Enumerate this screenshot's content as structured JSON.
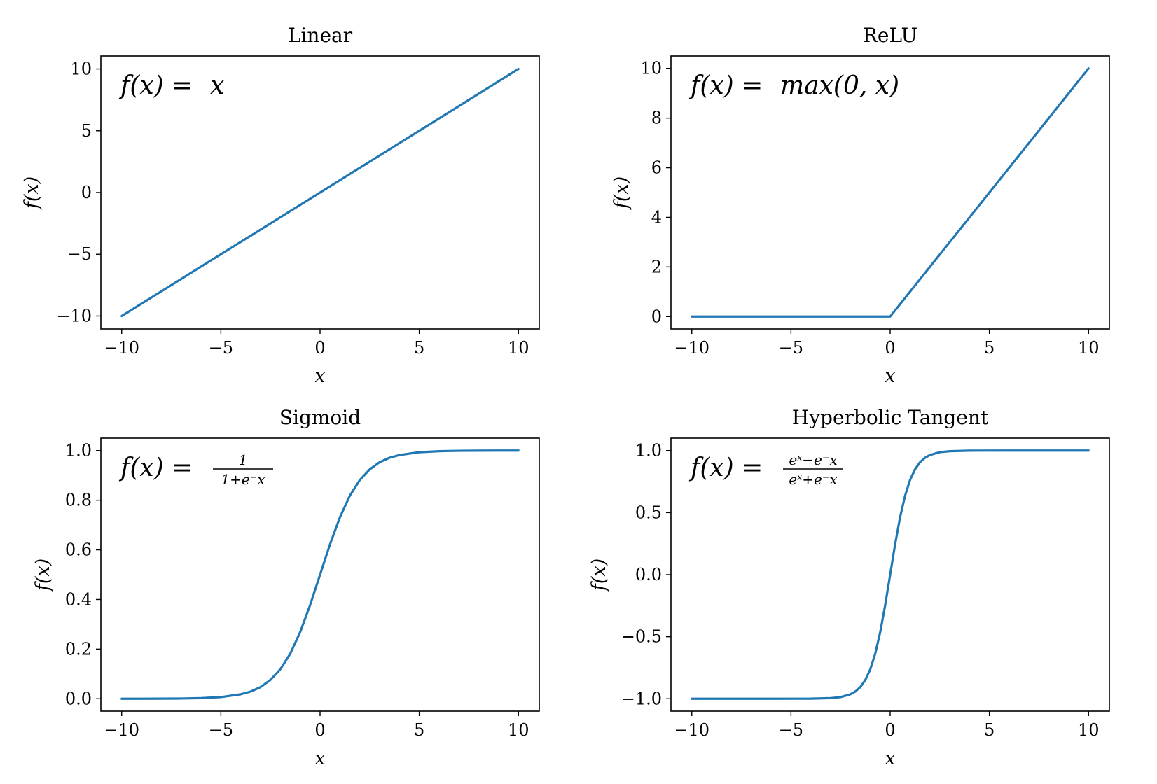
{
  "accent_color": "#1f77b4",
  "chart_data": [
    {
      "type": "line",
      "title": "Linear",
      "xlabel": "x",
      "ylabel": "f(x)",
      "formula": {
        "lhs": "f(x) = ",
        "rhs": "x"
      },
      "xlim": [
        -11.05,
        11.05
      ],
      "ylim": [
        -11.05,
        11.05
      ],
      "xticks": [
        -10,
        -5,
        0,
        5,
        10
      ],
      "xtick_labels": [
        "−10",
        "−5",
        "0",
        "5",
        "10"
      ],
      "yticks": [
        -10,
        -5,
        0,
        5,
        10
      ],
      "ytick_labels": [
        "−10",
        "−5",
        "0",
        "5",
        "10"
      ],
      "series": [
        {
          "x": [
            -10,
            10
          ],
          "y": [
            -10,
            10
          ]
        }
      ]
    },
    {
      "type": "line",
      "title": "ReLU",
      "xlabel": "x",
      "ylabel": "f(x)",
      "formula": {
        "lhs": "f(x) = ",
        "rhs": "max(0, x)"
      },
      "xlim": [
        -11.05,
        11.05
      ],
      "ylim": [
        -0.5,
        10.5
      ],
      "xticks": [
        -10,
        -5,
        0,
        5,
        10
      ],
      "xtick_labels": [
        "−10",
        "−5",
        "0",
        "5",
        "10"
      ],
      "yticks": [
        0,
        2,
        4,
        6,
        8,
        10
      ],
      "ytick_labels": [
        "0",
        "2",
        "4",
        "6",
        "8",
        "10"
      ],
      "series": [
        {
          "x": [
            -10,
            0,
            10
          ],
          "y": [
            0,
            0,
            10
          ]
        }
      ]
    },
    {
      "type": "line",
      "title": "Sigmoid",
      "xlabel": "x",
      "ylabel": "f(x)",
      "formula": {
        "lhs": "f(x) = ",
        "num": "1",
        "den": "1+e⁻x"
      },
      "xlim": [
        -11.05,
        11.05
      ],
      "ylim": [
        -0.05,
        1.05
      ],
      "xticks": [
        -10,
        -5,
        0,
        5,
        10
      ],
      "xtick_labels": [
        "−10",
        "−5",
        "0",
        "5",
        "10"
      ],
      "yticks": [
        0.0,
        0.2,
        0.4,
        0.6,
        0.8,
        1.0
      ],
      "ytick_labels": [
        "0.0",
        "0.2",
        "0.4",
        "0.6",
        "0.8",
        "1.0"
      ],
      "series": [
        {
          "x": [
            -10,
            -9,
            -8,
            -7,
            -6,
            -5,
            -4,
            -3.5,
            -3,
            -2.5,
            -2,
            -1.5,
            -1,
            -0.5,
            0,
            0.5,
            1,
            1.5,
            2,
            2.5,
            3,
            3.5,
            4,
            5,
            6,
            7,
            8,
            9,
            10
          ],
          "y": [
            5e-05,
            0.00012,
            0.00034,
            0.0009,
            0.0025,
            0.0067,
            0.018,
            0.029,
            0.047,
            0.076,
            0.119,
            0.182,
            0.269,
            0.378,
            0.5,
            0.622,
            0.731,
            0.818,
            0.881,
            0.924,
            0.953,
            0.971,
            0.982,
            0.9933,
            0.9975,
            0.9991,
            0.99966,
            0.99988,
            0.99995
          ]
        }
      ]
    },
    {
      "type": "line",
      "title": "Hyperbolic Tangent",
      "xlabel": "x",
      "ylabel": "f(x)",
      "formula": {
        "lhs": "f(x) = ",
        "num": "eˣ−e⁻x",
        "den": "eˣ+e⁻x"
      },
      "xlim": [
        -11.05,
        11.05
      ],
      "ylim": [
        -1.1,
        1.1
      ],
      "xticks": [
        -10,
        -5,
        0,
        5,
        10
      ],
      "xtick_labels": [
        "−10",
        "−5",
        "0",
        "5",
        "10"
      ],
      "yticks": [
        -1.0,
        -0.5,
        0.0,
        0.5,
        1.0
      ],
      "ytick_labels": [
        "−1.0",
        "−0.5",
        "0.0",
        "0.5",
        "1.0"
      ],
      "series": [
        {
          "x": [
            -10,
            -6,
            -4,
            -3,
            -2.5,
            -2,
            -1.75,
            -1.5,
            -1.25,
            -1,
            -0.75,
            -0.5,
            -0.25,
            0,
            0.25,
            0.5,
            0.75,
            1,
            1.25,
            1.5,
            1.75,
            2,
            2.5,
            3,
            4,
            6,
            10
          ],
          "y": [
            -1.0,
            -0.99999,
            -0.9993,
            -0.995,
            -0.987,
            -0.964,
            -0.941,
            -0.905,
            -0.848,
            -0.762,
            -0.635,
            -0.462,
            -0.245,
            0,
            0.245,
            0.462,
            0.635,
            0.762,
            0.848,
            0.905,
            0.941,
            0.964,
            0.987,
            0.995,
            0.9993,
            0.99999,
            1.0
          ]
        }
      ]
    }
  ]
}
